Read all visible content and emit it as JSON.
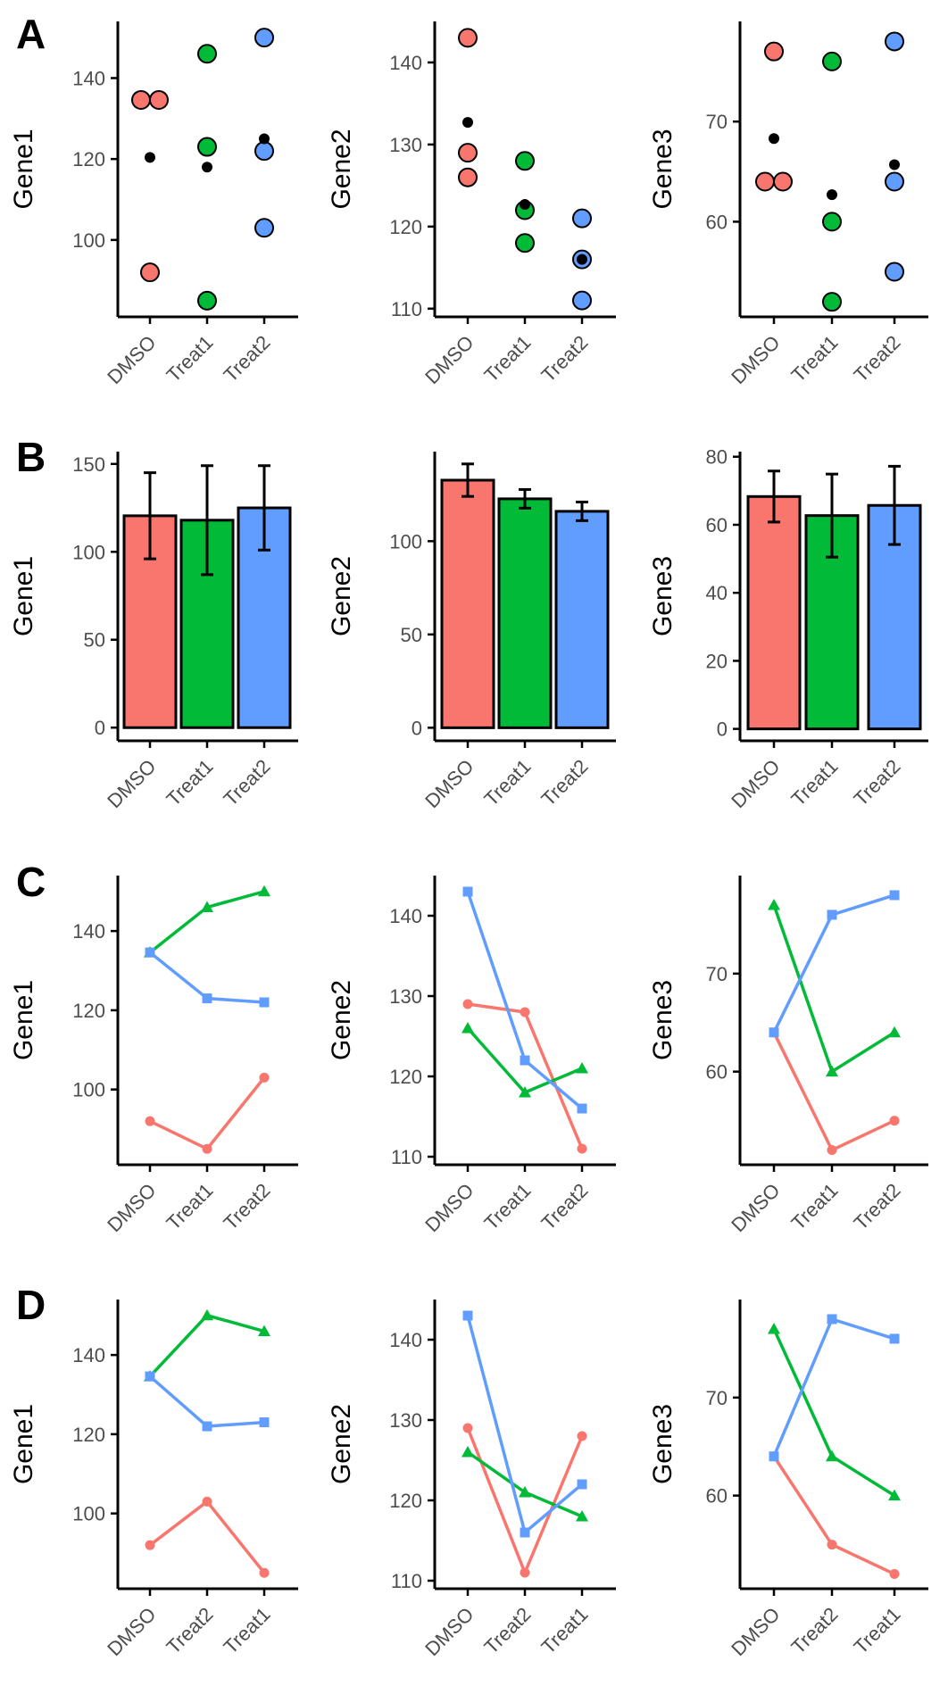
{
  "groups": [
    "DMSO",
    "Treat1",
    "Treat2"
  ],
  "colors": {
    "DMSO": "#F8766D",
    "Treat1": "#00BA38",
    "Treat2": "#619CFF",
    "mean_point": "#000000",
    "axis": "#000000"
  },
  "series_markers": {
    "circle": "#F8766D",
    "triangle": "#00BA38",
    "square": "#619CFF"
  },
  "chart_data": [
    {
      "panel": "A",
      "type": "scatter",
      "ylabel": "Gene1",
      "categories": [
        "DMSO",
        "Treat1",
        "Treat2"
      ],
      "yticks": [
        100,
        120,
        140
      ],
      "ylim": [
        81,
        154
      ],
      "points": {
        "DMSO": [
          134.6,
          134.6,
          92
        ],
        "Treat1": [
          146,
          123,
          85
        ],
        "Treat2": [
          150,
          122,
          103
        ]
      },
      "means": {
        "DMSO": 120.4,
        "Treat1": 118,
        "Treat2": 125
      }
    },
    {
      "panel": "A",
      "type": "scatter",
      "ylabel": "Gene2",
      "categories": [
        "DMSO",
        "Treat1",
        "Treat2"
      ],
      "yticks": [
        110,
        120,
        130,
        140
      ],
      "ylim": [
        109,
        145
      ],
      "points": {
        "DMSO": [
          143,
          129,
          126
        ],
        "Treat1": [
          128,
          122,
          118
        ],
        "Treat2": [
          121,
          116,
          111
        ]
      },
      "means": {
        "DMSO": 132.7,
        "Treat1": 122.7,
        "Treat2": 116
      }
    },
    {
      "panel": "A",
      "type": "scatter",
      "ylabel": "Gene3",
      "categories": [
        "DMSO",
        "Treat1",
        "Treat2"
      ],
      "yticks": [
        60,
        70
      ],
      "ylim": [
        50.5,
        80
      ],
      "points": {
        "DMSO": [
          77,
          64,
          64
        ],
        "Treat1": [
          76,
          60,
          52
        ],
        "Treat2": [
          78,
          64,
          55
        ]
      },
      "means": {
        "DMSO": 68.3,
        "Treat1": 62.7,
        "Treat2": 65.7
      }
    },
    {
      "panel": "B",
      "type": "bar",
      "ylabel": "Gene1",
      "categories": [
        "DMSO",
        "Treat1",
        "Treat2"
      ],
      "yticks": [
        0,
        50,
        100,
        150
      ],
      "ylim": [
        -7.5,
        157
      ],
      "values": [
        120.5,
        118,
        125
      ],
      "errors": [
        24.5,
        31,
        24
      ]
    },
    {
      "panel": "B",
      "type": "bar",
      "ylabel": "Gene2",
      "categories": [
        "DMSO",
        "Treat1",
        "Treat2"
      ],
      "yticks": [
        0,
        50,
        100
      ],
      "ylim": [
        -7,
        148
      ],
      "values": [
        132.7,
        122.7,
        116
      ],
      "errors": [
        8.7,
        5,
        5
      ]
    },
    {
      "panel": "B",
      "type": "bar",
      "ylabel": "Gene3",
      "categories": [
        "DMSO",
        "Treat1",
        "Treat2"
      ],
      "yticks": [
        0,
        20,
        40,
        60,
        80
      ],
      "ylim": [
        -3.5,
        81.5
      ],
      "values": [
        68.3,
        62.7,
        65.7
      ],
      "errors": [
        7.5,
        12.2,
        11.5
      ]
    },
    {
      "panel": "C",
      "type": "line",
      "ylabel": "Gene1",
      "categories": [
        "DMSO",
        "Treat1",
        "Treat2"
      ],
      "yticks": [
        100,
        120,
        140
      ],
      "ylim": [
        81,
        154
      ],
      "series": [
        {
          "marker": "circle",
          "values": [
            92,
            85,
            103
          ]
        },
        {
          "marker": "triangle",
          "values": [
            134.6,
            146,
            150
          ]
        },
        {
          "marker": "square",
          "values": [
            134.6,
            123,
            122
          ]
        }
      ]
    },
    {
      "panel": "C",
      "type": "line",
      "ylabel": "Gene2",
      "categories": [
        "DMSO",
        "Treat1",
        "Treat2"
      ],
      "yticks": [
        110,
        120,
        130,
        140
      ],
      "ylim": [
        109,
        145
      ],
      "series": [
        {
          "marker": "circle",
          "values": [
            129,
            128,
            111
          ]
        },
        {
          "marker": "triangle",
          "values": [
            126,
            118,
            121
          ]
        },
        {
          "marker": "square",
          "values": [
            143,
            122,
            116
          ]
        }
      ]
    },
    {
      "panel": "C",
      "type": "line",
      "ylabel": "Gene3",
      "categories": [
        "DMSO",
        "Treat1",
        "Treat2"
      ],
      "yticks": [
        60,
        70
      ],
      "ylim": [
        50.5,
        80
      ],
      "series": [
        {
          "marker": "circle",
          "values": [
            64,
            52,
            55
          ]
        },
        {
          "marker": "triangle",
          "values": [
            77,
            60,
            64
          ]
        },
        {
          "marker": "square",
          "values": [
            64,
            76,
            78
          ]
        }
      ]
    },
    {
      "panel": "D",
      "type": "line",
      "ylabel": "Gene1",
      "categories": [
        "DMSO",
        "Treat2",
        "Treat1"
      ],
      "yticks": [
        100,
        120,
        140
      ],
      "ylim": [
        81,
        154
      ],
      "series": [
        {
          "marker": "circle",
          "values": [
            92,
            103,
            85
          ]
        },
        {
          "marker": "triangle",
          "values": [
            134.6,
            150,
            146
          ]
        },
        {
          "marker": "square",
          "values": [
            134.6,
            122,
            123
          ]
        }
      ]
    },
    {
      "panel": "D",
      "type": "line",
      "ylabel": "Gene2",
      "categories": [
        "DMSO",
        "Treat2",
        "Treat1"
      ],
      "yticks": [
        110,
        120,
        130,
        140
      ],
      "ylim": [
        109,
        145
      ],
      "series": [
        {
          "marker": "circle",
          "values": [
            129,
            111,
            128
          ]
        },
        {
          "marker": "triangle",
          "values": [
            126,
            121,
            118
          ]
        },
        {
          "marker": "square",
          "values": [
            143,
            116,
            122
          ]
        }
      ]
    },
    {
      "panel": "D",
      "type": "line",
      "ylabel": "Gene3",
      "categories": [
        "DMSO",
        "Treat2",
        "Treat1"
      ],
      "yticks": [
        60,
        70
      ],
      "ylim": [
        50.5,
        80
      ],
      "series": [
        {
          "marker": "circle",
          "values": [
            64,
            55,
            52
          ]
        },
        {
          "marker": "triangle",
          "values": [
            77,
            64,
            60
          ]
        },
        {
          "marker": "square",
          "values": [
            64,
            78,
            76
          ]
        }
      ]
    }
  ]
}
